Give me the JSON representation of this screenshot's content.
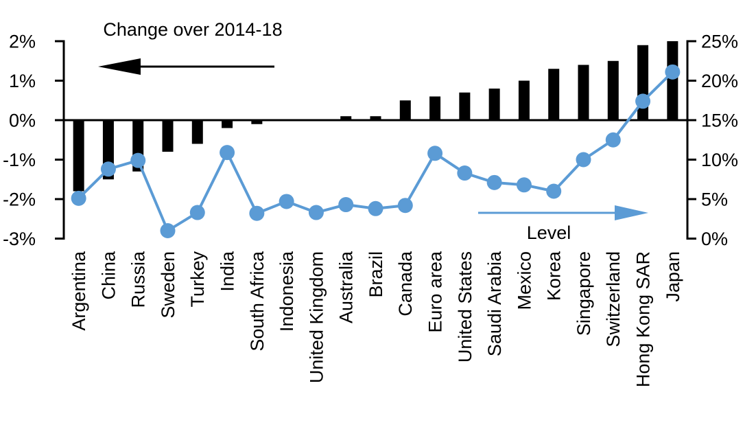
{
  "chart_data": {
    "type": "bar+line",
    "title": "Change over 2014-18",
    "categories": [
      "Argentina",
      "China",
      "Russia",
      "Sweden",
      "Turkey",
      "India",
      "South Africa",
      "Indonesia",
      "United Kingdom",
      "Australia",
      "Brazil",
      "Canada",
      "Euro area",
      "United States",
      "Saudi Arabia",
      "Mexico",
      "Korea",
      "Singapore",
      "Switzerland",
      "Hong Kong SAR",
      "Japan"
    ],
    "series": [
      {
        "name": "Change over 2014-18",
        "type": "bar",
        "axis": "left",
        "color": "#000000",
        "values": [
          -1.8,
          -1.5,
          -1.3,
          -0.8,
          -0.6,
          -0.2,
          -0.1,
          0,
          0,
          0.1,
          0.1,
          0.5,
          0.6,
          0.7,
          0.8,
          1.0,
          1.3,
          1.4,
          1.5,
          1.9,
          2.0
        ]
      },
      {
        "name": "Level",
        "type": "line",
        "axis": "right",
        "color": "#5B9BD5",
        "values": [
          5.1,
          8.8,
          9.9,
          1.0,
          3.3,
          10.9,
          3.2,
          4.7,
          3.3,
          4.3,
          3.8,
          4.2,
          10.8,
          8.3,
          7.1,
          6.8,
          6.0,
          10.0,
          12.5,
          17.4,
          21.1
        ]
      }
    ],
    "left_axis": {
      "min": -3,
      "max": 2,
      "tick_labels": [
        "2%",
        "1%",
        "0%",
        "-1%",
        "-2%",
        "-3%"
      ]
    },
    "right_axis": {
      "min": 0,
      "max": 25,
      "tick_labels": [
        "25%",
        "20%",
        "15%",
        "10%",
        "5%",
        "0%"
      ]
    },
    "annotations": {
      "bars": {
        "text": "Change over 2014-18",
        "arrow": "left",
        "color": "#000000"
      },
      "line": {
        "text": "Level",
        "arrow": "right",
        "color": "#5B9BD5"
      }
    },
    "grid": false,
    "legend": "in-chart text annotations with arrows"
  }
}
